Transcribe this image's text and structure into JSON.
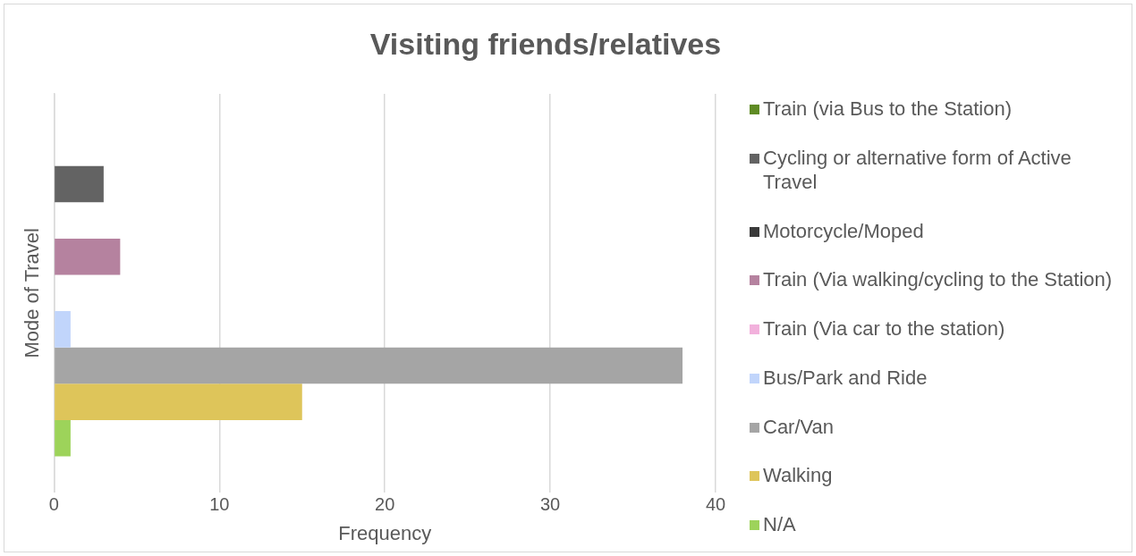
{
  "chart_data": {
    "type": "bar",
    "orientation": "horizontal",
    "title": "Visiting friends/relatives",
    "xlabel": "Frequency",
    "ylabel": "Mode of Travel",
    "categories": [
      null
    ],
    "series": [
      {
        "name": "Train (via Bus to the Station)",
        "color": "#5f8b24",
        "values": [
          0
        ]
      },
      {
        "name": "Cycling or alternative form of Active Travel",
        "color": "#636363",
        "values": [
          3
        ]
      },
      {
        "name": "Motorcycle/Moped",
        "color": "#3a3a3a",
        "values": [
          0
        ]
      },
      {
        "name": "Train (Via walking/cycling to the Station)",
        "color": "#b5829f",
        "values": [
          4
        ]
      },
      {
        "name": "Train (Via car to the station)",
        "color": "#f2b1dc",
        "values": [
          0
        ]
      },
      {
        "name": "Bus/Park and Ride",
        "color": "#c1d5fb",
        "values": [
          1
        ]
      },
      {
        "name": "Car/Van",
        "color": "#a5a5a5",
        "values": [
          38
        ]
      },
      {
        "name": "Walking",
        "color": "#dec55a",
        "values": [
          15
        ]
      },
      {
        "name": "N/A",
        "color": "#9dd35a",
        "values": [
          1
        ]
      }
    ],
    "xlim": [
      0,
      40
    ],
    "xticks": [
      0,
      10,
      20,
      30,
      40
    ],
    "grid": "x",
    "legend": "right"
  }
}
